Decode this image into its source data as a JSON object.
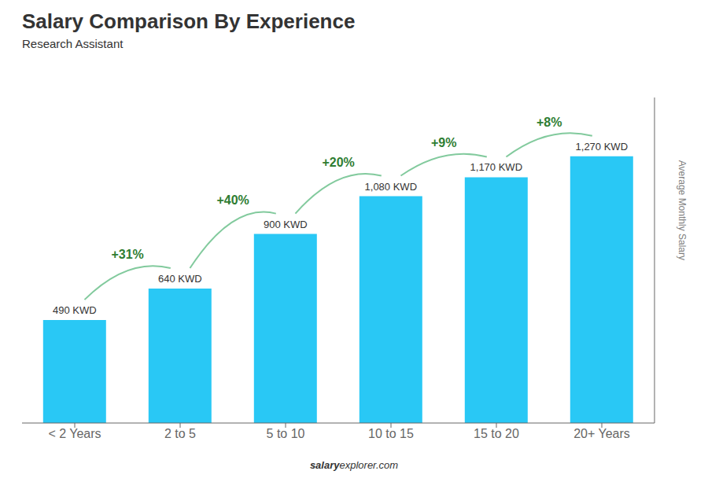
{
  "chart_data": {
    "type": "bar",
    "title": "Salary Comparison By Experience",
    "subtitle": "Research Assistant",
    "categories": [
      "< 2 Years",
      "2 to 5",
      "5 to 10",
      "10 to 15",
      "15 to 20",
      "20+ Years"
    ],
    "values": [
      490,
      640,
      900,
      1080,
      1170,
      1270
    ],
    "value_labels": [
      "490 KWD",
      "640 KWD",
      "900 KWD",
      "1,080 KWD",
      "1,170 KWD",
      "1,270 KWD"
    ],
    "data_labels": true,
    "color": "#29c8f5",
    "ylabel": "Average Monthly Salary",
    "ylim": [
      0,
      1550
    ],
    "yticks": [],
    "tick_labels": "x",
    "grid": false,
    "annotations": [
      {
        "category": "2 to 5",
        "text": "+31%"
      },
      {
        "category": "5 to 10",
        "text": "+40%"
      },
      {
        "category": "10 to 15",
        "text": "+20%"
      },
      {
        "category": "15 to 20",
        "text": "+9%"
      },
      {
        "category": "20+ Years",
        "text": "+8%"
      }
    ],
    "footer": [
      "salary",
      "explorer.com"
    ]
  }
}
